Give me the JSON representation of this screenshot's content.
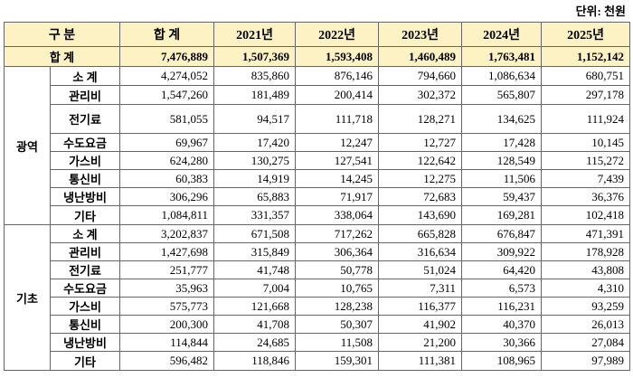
{
  "unit": "단위: 천원",
  "header": [
    "구 분",
    "합 계",
    "2021년",
    "2022년",
    "2023년",
    "2024년",
    "2025년"
  ],
  "total": {
    "label": "합 계",
    "values": [
      "7,476,889",
      "1,507,369",
      "1,593,408",
      "1,460,489",
      "1,763,481",
      "1,152,142"
    ]
  },
  "groups": [
    {
      "name": "광역",
      "rows": [
        {
          "label": "소 계",
          "values": [
            "4,274,052",
            "835,860",
            "876,146",
            "794,660",
            "1,086,634",
            "680,751"
          ]
        },
        {
          "label": "관리비",
          "values": [
            "1,547,260",
            "181,489",
            "200,414",
            "302,372",
            "565,807",
            "297,178"
          ]
        },
        {
          "label": "전기료",
          "values": [
            "581,055",
            "94,517",
            "111,718",
            "128,271",
            "134,625",
            "111,924"
          ]
        },
        {
          "label": "수도요금",
          "values": [
            "69,967",
            "17,420",
            "12,247",
            "12,727",
            "17,428",
            "10,145"
          ]
        },
        {
          "label": "가스비",
          "values": [
            "624,280",
            "130,275",
            "127,541",
            "122,642",
            "128,549",
            "115,272"
          ]
        },
        {
          "label": "통신비",
          "values": [
            "60,383",
            "14,919",
            "14,245",
            "12,275",
            "11,506",
            "7,439"
          ]
        },
        {
          "label": "냉난방비",
          "values": [
            "306,296",
            "65,883",
            "71,917",
            "72,683",
            "59,437",
            "36,376"
          ]
        },
        {
          "label": "기타",
          "values": [
            "1,084,811",
            "331,357",
            "338,064",
            "143,690",
            "169,281",
            "102,418"
          ]
        }
      ]
    },
    {
      "name": "기초",
      "rows": [
        {
          "label": "소 계",
          "values": [
            "3,202,837",
            "671,508",
            "717,262",
            "665,828",
            "676,847",
            "471,391"
          ]
        },
        {
          "label": "관리비",
          "values": [
            "1,427,698",
            "315,849",
            "306,364",
            "316,634",
            "309,922",
            "178,928"
          ]
        },
        {
          "label": "전기료",
          "values": [
            "251,777",
            "41,748",
            "50,778",
            "51,024",
            "64,420",
            "43,808"
          ]
        },
        {
          "label": "수도요금",
          "values": [
            "35,963",
            "7,004",
            "10,765",
            "7,311",
            "6,573",
            "4,310"
          ]
        },
        {
          "label": "가스비",
          "values": [
            "575,773",
            "121,668",
            "128,238",
            "116,377",
            "116,231",
            "93,259"
          ]
        },
        {
          "label": "통신비",
          "values": [
            "200,300",
            "41,708",
            "50,307",
            "41,902",
            "40,370",
            "26,013"
          ]
        },
        {
          "label": "냉난방비",
          "values": [
            "114,844",
            "24,685",
            "11,508",
            "21,200",
            "30,366",
            "27,084"
          ]
        },
        {
          "label": "기타",
          "values": [
            "596,482",
            "118,846",
            "159,301",
            "111,381",
            "108,965",
            "97,989"
          ]
        }
      ]
    }
  ]
}
